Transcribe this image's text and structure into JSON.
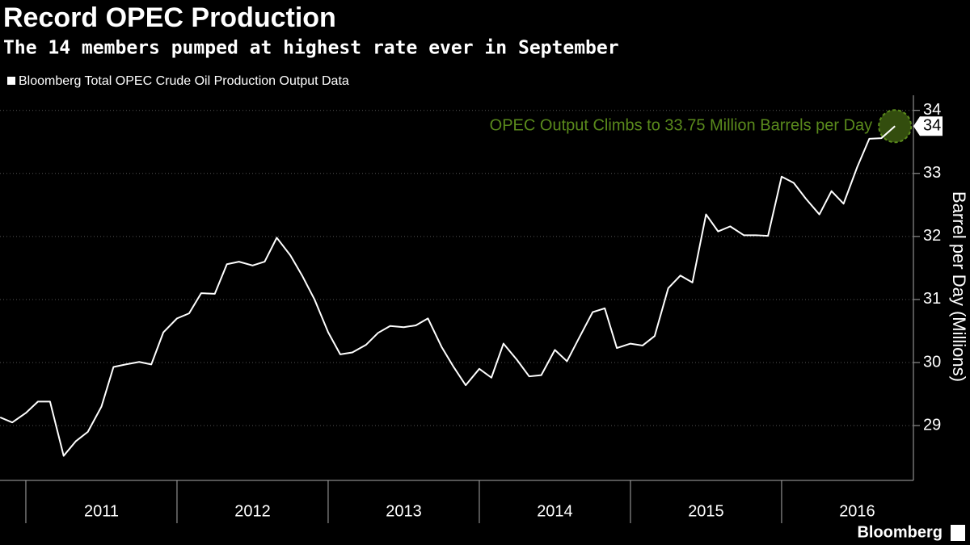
{
  "chart_data": {
    "type": "line",
    "title": "Record OPEC Production",
    "subtitle": "The 14 members pumped at highest rate ever in September",
    "y_label": "Barrel per Day (Millions)",
    "source": "Bloomberg",
    "annotation": {
      "text": "OPEC Output Climbs to 33.75 Million Barrels per Day",
      "color": "#5a8a1c"
    },
    "x": [
      2010.83,
      2010.91,
      2011.0,
      2011.08,
      2011.16,
      2011.25,
      2011.33,
      2011.41,
      2011.5,
      2011.58,
      2011.66,
      2011.75,
      2011.83,
      2011.91,
      2012.0,
      2012.08,
      2012.16,
      2012.25,
      2012.33,
      2012.41,
      2012.5,
      2012.58,
      2012.66,
      2012.75,
      2012.83,
      2012.91,
      2013.0,
      2013.08,
      2013.16,
      2013.25,
      2013.33,
      2013.41,
      2013.5,
      2013.58,
      2013.66,
      2013.75,
      2013.83,
      2013.91,
      2014.0,
      2014.08,
      2014.16,
      2014.25,
      2014.33,
      2014.41,
      2014.5,
      2014.58,
      2014.66,
      2014.75,
      2014.83,
      2014.91,
      2015.0,
      2015.08,
      2015.16,
      2015.25,
      2015.33,
      2015.41,
      2015.5,
      2015.58,
      2015.66,
      2015.75,
      2015.83,
      2015.91,
      2016.0,
      2016.08,
      2016.16,
      2016.25,
      2016.33,
      2016.41,
      2016.5,
      2016.58,
      2016.66,
      2016.75
    ],
    "series": [
      {
        "name": "Bloomberg Total OPEC Crude Oil Production Output Data",
        "color": "#ffffff",
        "values": [
          29.13,
          29.05,
          29.2,
          29.38,
          29.38,
          28.52,
          28.75,
          28.9,
          29.3,
          29.93,
          29.97,
          30.01,
          29.97,
          30.48,
          30.7,
          30.78,
          31.1,
          31.09,
          31.56,
          31.6,
          31.54,
          31.6,
          31.98,
          31.7,
          31.37,
          31.0,
          30.48,
          30.13,
          30.16,
          30.28,
          30.47,
          30.58,
          30.56,
          30.59,
          30.7,
          30.25,
          29.93,
          29.64,
          29.9,
          29.76,
          30.3,
          30.04,
          29.78,
          29.8,
          30.2,
          30.02,
          30.39,
          30.8,
          30.86,
          30.23,
          30.3,
          30.27,
          30.42,
          31.18,
          31.38,
          31.27,
          32.35,
          32.08,
          32.16,
          32.02,
          32.02,
          32.01,
          32.95,
          32.85,
          32.6,
          32.35,
          32.72,
          32.52,
          33.1,
          33.55,
          33.56,
          33.75
        ],
        "value_labels": [
          null,
          null,
          null,
          null,
          null,
          null,
          null,
          null,
          null,
          null,
          null,
          null,
          null,
          null,
          null,
          null,
          null,
          null,
          null,
          null,
          null,
          null,
          null,
          null,
          null,
          null,
          null,
          null,
          null,
          null,
          null,
          null,
          null,
          null,
          null,
          null,
          null,
          null,
          null,
          null,
          null,
          null,
          null,
          null,
          null,
          null,
          null,
          null,
          null,
          null,
          null,
          null,
          null,
          null,
          null,
          null,
          null,
          null,
          null,
          null,
          null,
          null,
          null,
          null,
          null,
          null,
          null,
          null,
          null,
          null,
          null,
          "34"
        ]
      }
    ],
    "xlim": [
      2010.829,
      2016.872
    ],
    "xticks": [
      2011,
      2012,
      2013,
      2014,
      2015,
      2016
    ],
    "ylim": [
      28.13,
      34.24
    ],
    "yticks": [
      29,
      30,
      31,
      32,
      33,
      34
    ],
    "grid": true
  }
}
